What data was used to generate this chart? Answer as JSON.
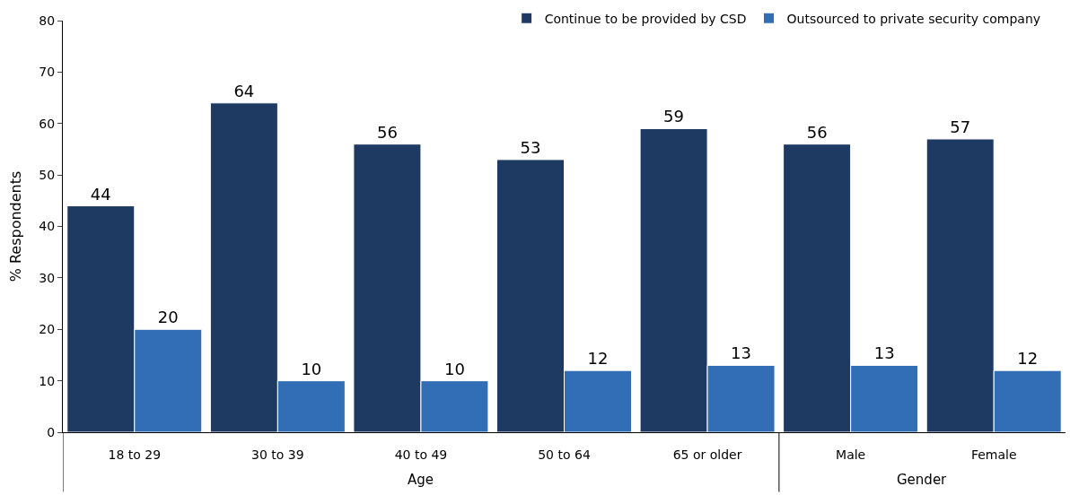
{
  "chart_data": {
    "type": "bar",
    "ylabel": "% Respondents",
    "categories": [
      "18 to 29",
      "30 to 39",
      "40 to 49",
      "50 to 64",
      "65 or older",
      "Male",
      "Female"
    ],
    "series": [
      {
        "name": "Continue to be provided by CSD",
        "color": "#1e3a62",
        "values": [
          44,
          64,
          56,
          53,
          59,
          56,
          57
        ]
      },
      {
        "name": "Outsourced to private security company",
        "color": "#326eb6",
        "values": [
          20,
          10,
          10,
          12,
          13,
          13,
          12
        ]
      }
    ],
    "ylim": [
      0,
      80
    ],
    "yticks": [
      0,
      10,
      20,
      30,
      40,
      50,
      60,
      70,
      80
    ],
    "legend": "top",
    "data_labels": true,
    "annotations": [
      "Age",
      "Gender"
    ]
  }
}
